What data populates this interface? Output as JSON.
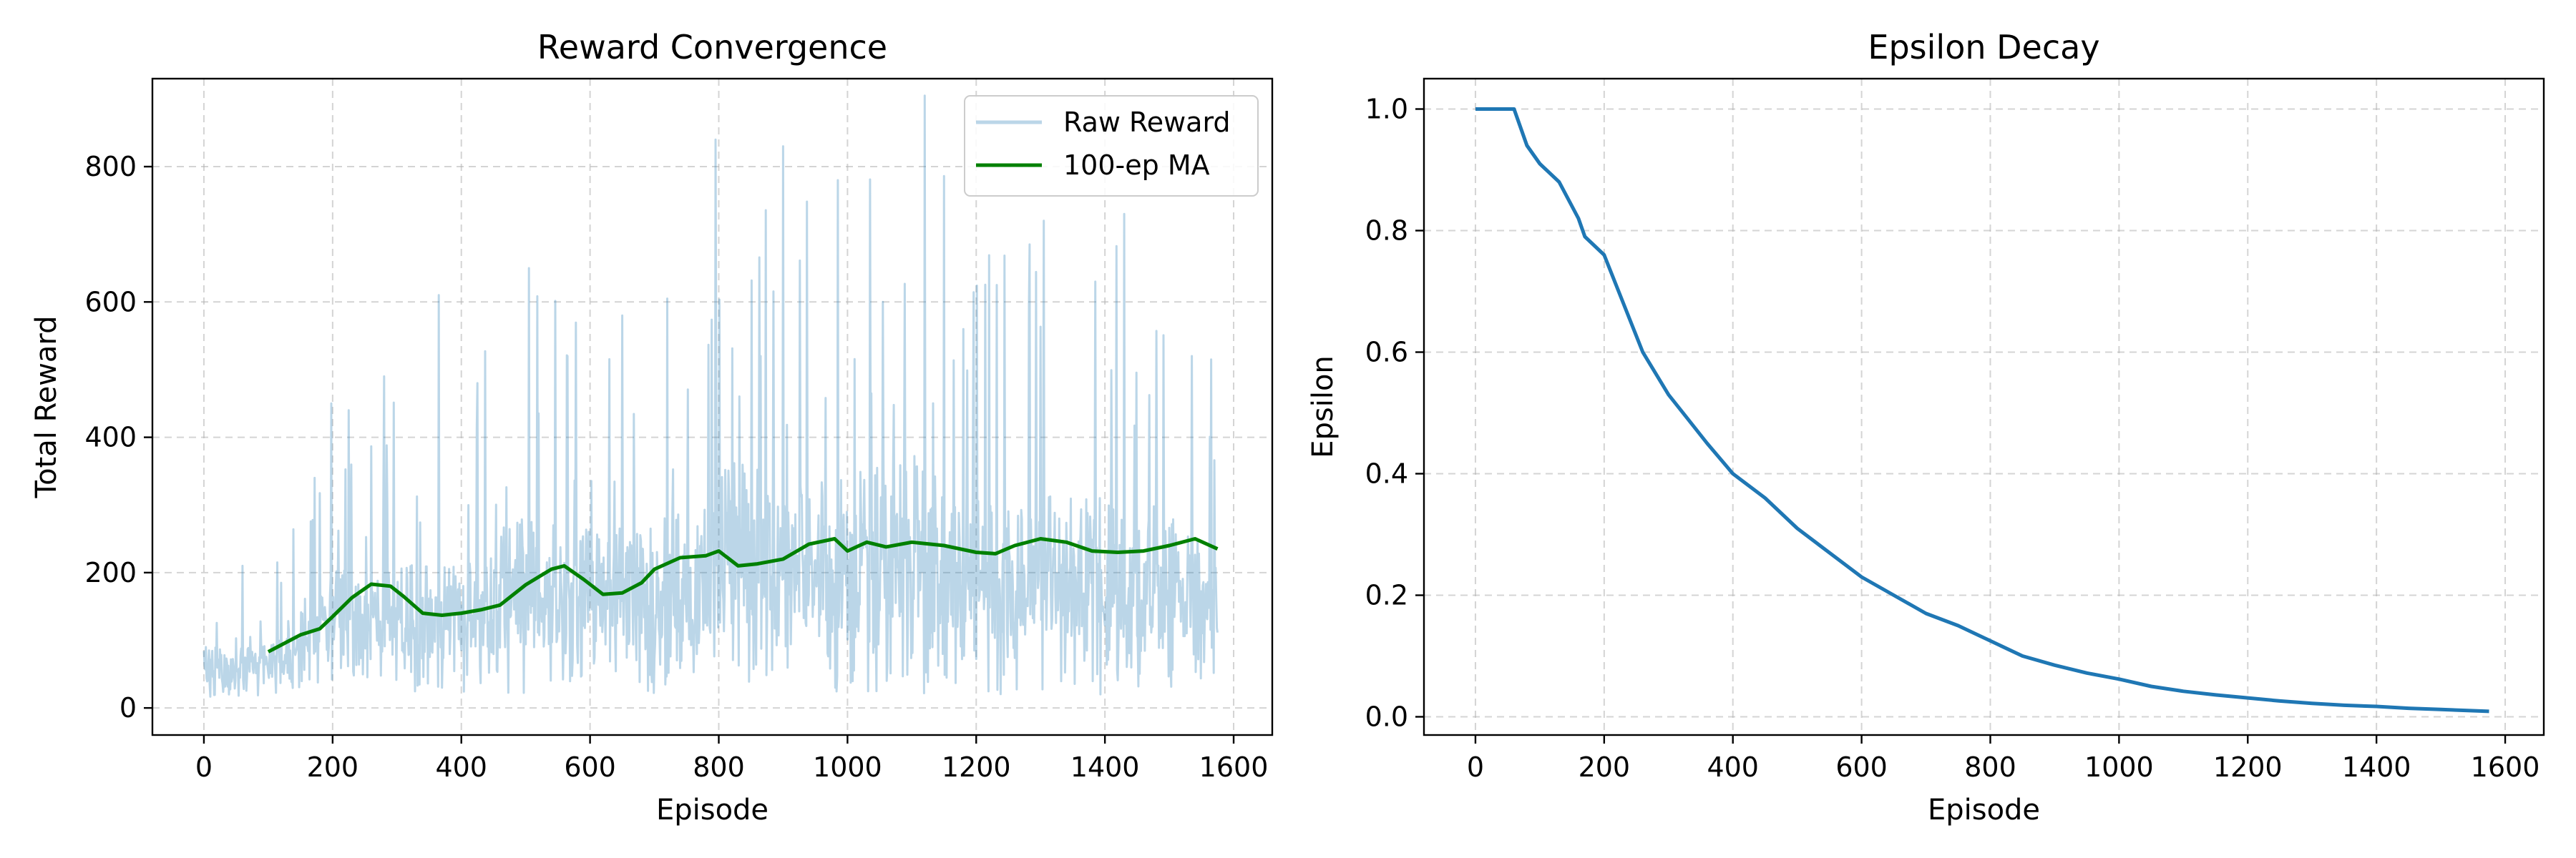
{
  "chart_data": [
    {
      "type": "line",
      "title": "Reward Convergence",
      "xlabel": "Episode",
      "ylabel": "Total Reward",
      "xlim": [
        -80,
        1660
      ],
      "ylim": [
        -40,
        930
      ],
      "xticks": [
        0,
        200,
        400,
        600,
        800,
        1000,
        1200,
        1400,
        1600
      ],
      "xtick_labels": [
        "0",
        "200",
        "400",
        "600",
        "800",
        "1000",
        "1200",
        "1400",
        "1600"
      ],
      "yticks": [
        0,
        200,
        400,
        600,
        800
      ],
      "ytick_labels": [
        "0",
        "200",
        "400",
        "600",
        "800"
      ],
      "grid": true,
      "legend_position": "upper right",
      "series": [
        {
          "name": "Raw Reward",
          "color": "#1f77b4",
          "opacity": 0.3,
          "style": "noisy",
          "x_range": [
            0,
            1575
          ],
          "envelope": {
            "x": [
              0,
              100,
              200,
              300,
              400,
              500,
              600,
              700,
              800,
              900,
              1000,
              1100,
              1200,
              1300,
              1400,
              1500,
              1575
            ],
            "low": [
              10,
              20,
              40,
              20,
              20,
              20,
              20,
              20,
              20,
              20,
              20,
              20,
              20,
              20,
              20,
              30,
              50
            ],
            "high": [
              200,
              200,
              450,
              480,
              480,
              650,
              600,
              610,
              840,
              830,
              780,
              900,
              700,
              720,
              730,
              630,
              520
            ]
          },
          "peaks": [
            {
              "x": 3,
              "y": 90
            },
            {
              "x": 60,
              "y": 210
            },
            {
              "x": 120,
              "y": 185
            },
            {
              "x": 172,
              "y": 340
            },
            {
              "x": 198,
              "y": 450
            },
            {
              "x": 225,
              "y": 440
            },
            {
              "x": 280,
              "y": 490
            },
            {
              "x": 365,
              "y": 610
            },
            {
              "x": 425,
              "y": 480
            },
            {
              "x": 505,
              "y": 650
            },
            {
              "x": 565,
              "y": 520
            },
            {
              "x": 650,
              "y": 580
            },
            {
              "x": 720,
              "y": 605
            },
            {
              "x": 795,
              "y": 840
            },
            {
              "x": 865,
              "y": 520
            },
            {
              "x": 900,
              "y": 830
            },
            {
              "x": 985,
              "y": 780
            },
            {
              "x": 1055,
              "y": 600
            },
            {
              "x": 1120,
              "y": 905
            },
            {
              "x": 1180,
              "y": 560
            },
            {
              "x": 1232,
              "y": 625
            },
            {
              "x": 1305,
              "y": 720
            },
            {
              "x": 1385,
              "y": 630
            },
            {
              "x": 1430,
              "y": 730
            },
            {
              "x": 1535,
              "y": 520
            },
            {
              "x": 1565,
              "y": 515
            }
          ]
        },
        {
          "name": "100-ep MA",
          "color": "#008000",
          "x": [
            100,
            150,
            180,
            200,
            230,
            260,
            290,
            310,
            340,
            370,
            400,
            430,
            460,
            500,
            540,
            560,
            590,
            620,
            650,
            680,
            700,
            740,
            780,
            800,
            830,
            860,
            900,
            940,
            980,
            1000,
            1030,
            1060,
            1100,
            1150,
            1200,
            1230,
            1260,
            1300,
            1340,
            1380,
            1420,
            1460,
            1500,
            1540,
            1575
          ],
          "values": [
            83,
            108,
            117,
            135,
            163,
            183,
            180,
            165,
            140,
            137,
            140,
            145,
            152,
            182,
            205,
            210,
            190,
            168,
            170,
            185,
            205,
            222,
            225,
            232,
            210,
            213,
            220,
            242,
            250,
            232,
            245,
            238,
            245,
            240,
            230,
            228,
            240,
            250,
            245,
            232,
            230,
            232,
            240,
            250,
            235
          ]
        }
      ]
    },
    {
      "type": "line",
      "title": "Epsilon Decay",
      "xlabel": "Episode",
      "ylabel": "Epsilon",
      "xlim": [
        -80,
        1660
      ],
      "ylim": [
        -0.03,
        1.05
      ],
      "xticks": [
        0,
        200,
        400,
        600,
        800,
        1000,
        1200,
        1400,
        1600
      ],
      "xtick_labels": [
        "0",
        "200",
        "400",
        "600",
        "800",
        "1000",
        "1200",
        "1400",
        "1600"
      ],
      "yticks": [
        0,
        0.2,
        0.4,
        0.6,
        0.8,
        1.0
      ],
      "ytick_labels": [
        "0.0",
        "0.2",
        "0.4",
        "0.6",
        "0.8",
        "1.0"
      ],
      "grid": true,
      "series": [
        {
          "name": "",
          "color": "#1f77b4",
          "x": [
            0,
            60,
            80,
            100,
            130,
            160,
            170,
            200,
            230,
            260,
            300,
            330,
            360,
            400,
            450,
            500,
            550,
            600,
            650,
            700,
            750,
            800,
            850,
            900,
            950,
            1000,
            1050,
            1100,
            1150,
            1200,
            1250,
            1300,
            1350,
            1400,
            1450,
            1500,
            1575
          ],
          "values": [
            1.0,
            1.0,
            0.94,
            0.91,
            0.88,
            0.82,
            0.79,
            0.76,
            0.68,
            0.6,
            0.53,
            0.49,
            0.45,
            0.4,
            0.36,
            0.31,
            0.27,
            0.23,
            0.2,
            0.17,
            0.15,
            0.125,
            0.1,
            0.085,
            0.072,
            0.062,
            0.05,
            0.042,
            0.036,
            0.031,
            0.026,
            0.022,
            0.019,
            0.017,
            0.014,
            0.012,
            0.009
          ]
        }
      ]
    }
  ]
}
